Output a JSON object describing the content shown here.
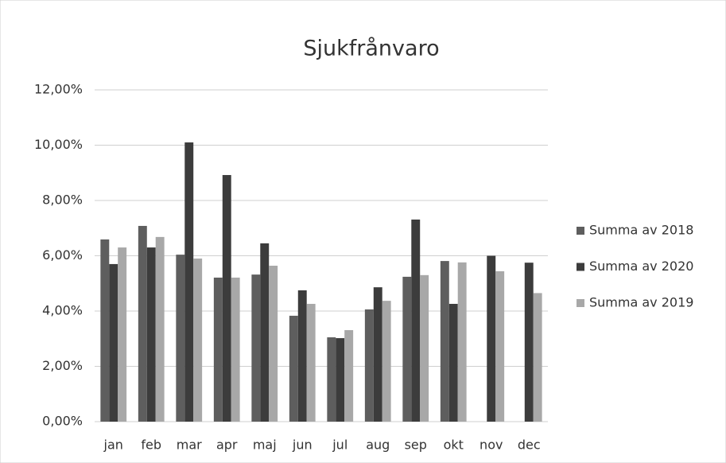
{
  "chart_data": {
    "type": "bar",
    "title": "Sjukfrånvaro",
    "categories": [
      "jan",
      "feb",
      "mar",
      "apr",
      "maj",
      "jun",
      "jul",
      "aug",
      "sep",
      "okt",
      "nov",
      "dec"
    ],
    "series": [
      {
        "name": "Summa av 2018",
        "color": "#5e5e5e",
        "values": [
          6.59,
          7.08,
          6.04,
          5.21,
          5.32,
          3.83,
          3.05,
          4.06,
          5.24,
          5.81,
          null,
          null
        ]
      },
      {
        "name": "Summa av 2020",
        "color": "#3c3c3c",
        "values": [
          5.7,
          6.3,
          10.1,
          8.92,
          6.45,
          4.75,
          3.02,
          4.86,
          7.31,
          4.26,
          6.0,
          5.75
        ]
      },
      {
        "name": "Summa av 2019",
        "color": "#a8a8a8",
        "values": [
          6.3,
          6.68,
          5.9,
          5.21,
          5.64,
          4.26,
          3.31,
          4.37,
          5.3,
          5.76,
          5.44,
          4.65
        ]
      }
    ],
    "ylim": [
      0,
      12
    ],
    "yticks": [
      {
        "value": 0,
        "label": "0,00%"
      },
      {
        "value": 2,
        "label": "2,00%"
      },
      {
        "value": 4,
        "label": "4,00%"
      },
      {
        "value": 6,
        "label": "6,00%"
      },
      {
        "value": 8,
        "label": "8,00%"
      },
      {
        "value": 10,
        "label": "10,00%"
      },
      {
        "value": 12,
        "label": "12,00%"
      }
    ],
    "grid": true,
    "legend": "right"
  }
}
